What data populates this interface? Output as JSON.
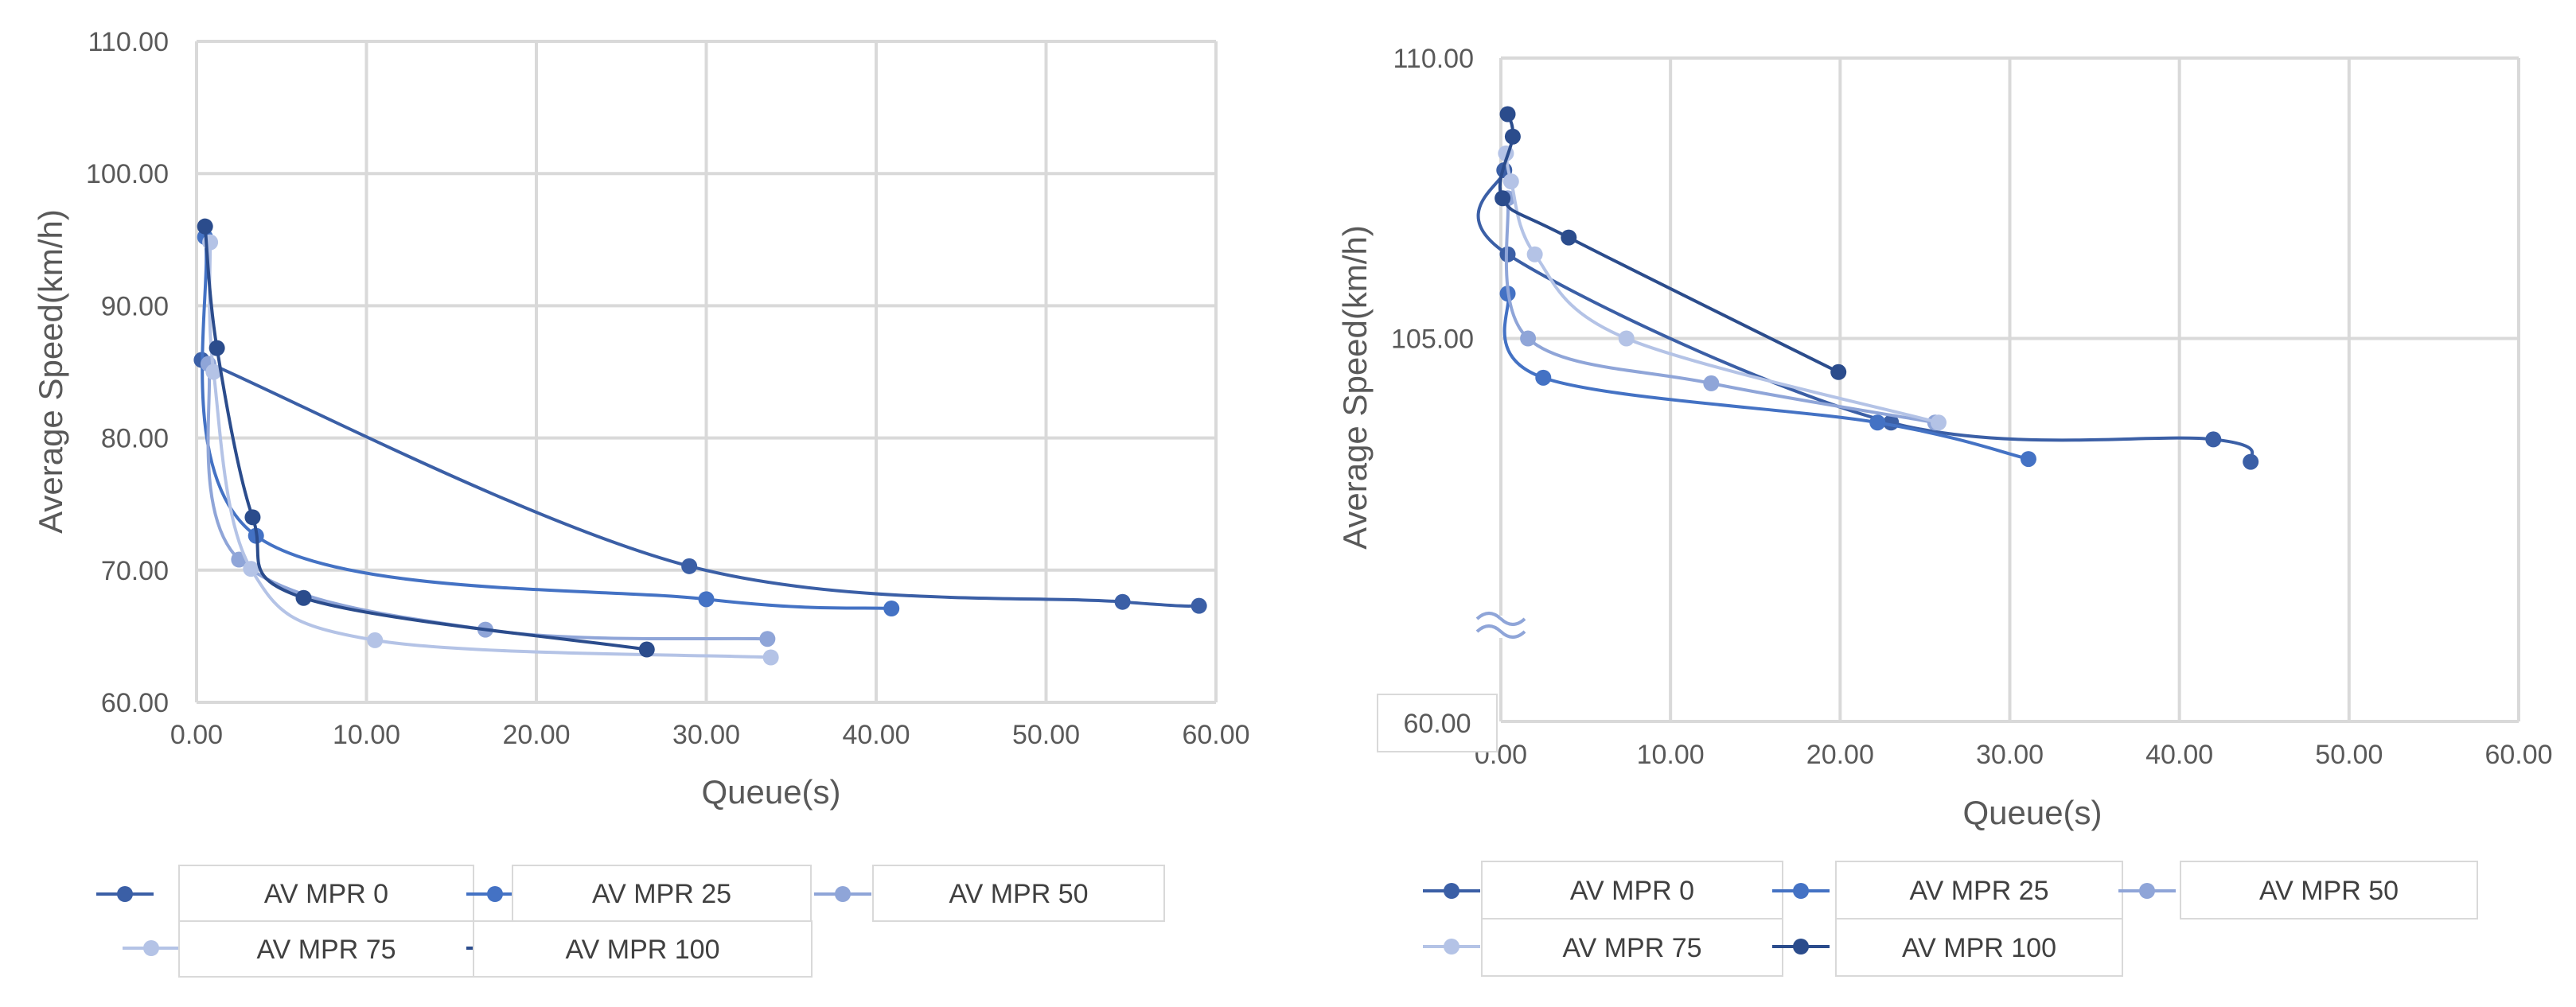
{
  "chart_data": [
    {
      "type": "scatter",
      "title": "",
      "xlabel": "Queue(s)",
      "ylabel": "Average Speed(km/h)",
      "xlim": [
        0,
        60
      ],
      "ylim": [
        60,
        110
      ],
      "x_ticks": [
        "0.00",
        "10.00",
        "20.00",
        "30.00",
        "40.00",
        "50.00",
        "60.00"
      ],
      "y_ticks": [
        "60.00",
        "70.00",
        "80.00",
        "90.00",
        "100.00",
        "110.00"
      ],
      "legend": [
        "AV MPR 0",
        "AV MPR 25",
        "AV MPR 50",
        "AV MPR 75",
        "AV MPR 100"
      ],
      "series": [
        {
          "name": "AV MPR 0",
          "color": "#3b5fa6",
          "points": [
            [
              0.3,
              85.9
            ],
            [
              29.0,
              70.3
            ],
            [
              54.5,
              67.6
            ],
            [
              59.0,
              67.3
            ]
          ]
        },
        {
          "name": "AV MPR 25",
          "color": "#4472c4",
          "points": [
            [
              0.5,
              95.2
            ],
            [
              3.5,
              72.6
            ],
            [
              30.0,
              67.8
            ],
            [
              40.9,
              67.1
            ]
          ]
        },
        {
          "name": "AV MPR 50",
          "color": "#8fa5d8",
          "points": [
            [
              0.7,
              85.6
            ],
            [
              2.5,
              70.8
            ],
            [
              17.0,
              65.5
            ],
            [
              33.6,
              64.8
            ]
          ]
        },
        {
          "name": "AV MPR 75",
          "color": "#b4c3e6",
          "points": [
            [
              0.8,
              94.8
            ],
            [
              1.0,
              85.0
            ],
            [
              3.2,
              70.1
            ],
            [
              10.5,
              64.7
            ],
            [
              33.8,
              63.4
            ]
          ]
        },
        {
          "name": "AV MPR 100",
          "color": "#2b4c8c",
          "points": [
            [
              0.5,
              96.0
            ],
            [
              1.2,
              86.8
            ],
            [
              3.3,
              74.0
            ],
            [
              6.3,
              67.9
            ],
            [
              26.5,
              64.0
            ]
          ]
        }
      ]
    },
    {
      "type": "scatter",
      "title": "",
      "xlabel": "Queue(s)",
      "ylabel": "Average Speed(km/h)",
      "xlim": [
        0,
        60
      ],
      "ylim": [
        100,
        110
      ],
      "axis_break": true,
      "axis_break_label": "60.00",
      "x_ticks": [
        "0.00",
        "10.00",
        "20.00",
        "30.00",
        "40.00",
        "50.00",
        "60.00"
      ],
      "y_ticks": [
        "105.00",
        "110.00"
      ],
      "legend": [
        "AV MPR 0",
        "AV MPR 25",
        "AV MPR 50",
        "AV MPR 75",
        "AV MPR 100"
      ],
      "series": [
        {
          "name": "AV MPR 0",
          "color": "#3b5fa6",
          "points": [
            [
              0.2,
              108.0
            ],
            [
              0.4,
              106.5
            ],
            [
              23.0,
              103.5
            ],
            [
              42.0,
              103.2
            ],
            [
              44.2,
              102.8
            ]
          ]
        },
        {
          "name": "AV MPR 25",
          "color": "#4472c4",
          "points": [
            [
              0.4,
              105.8
            ],
            [
              2.5,
              104.3
            ],
            [
              22.2,
              103.5
            ],
            [
              31.1,
              102.85
            ]
          ]
        },
        {
          "name": "AV MPR 50",
          "color": "#8fa5d8",
          "points": [
            [
              0.4,
              107.5
            ],
            [
              1.6,
              105.0
            ],
            [
              12.4,
              104.2
            ],
            [
              25.6,
              103.5
            ]
          ]
        },
        {
          "name": "AV MPR 75",
          "color": "#b4c3e6",
          "points": [
            [
              0.3,
              108.3
            ],
            [
              0.6,
              107.8
            ],
            [
              2.0,
              106.5
            ],
            [
              7.4,
              105.0
            ],
            [
              25.8,
              103.5
            ]
          ]
        },
        {
          "name": "AV MPR 100",
          "color": "#2b4c8c",
          "points": [
            [
              0.4,
              109.0
            ],
            [
              0.7,
              108.6
            ],
            [
              0.1,
              107.5
            ],
            [
              4.0,
              106.8
            ],
            [
              19.9,
              104.4
            ]
          ]
        }
      ]
    }
  ]
}
